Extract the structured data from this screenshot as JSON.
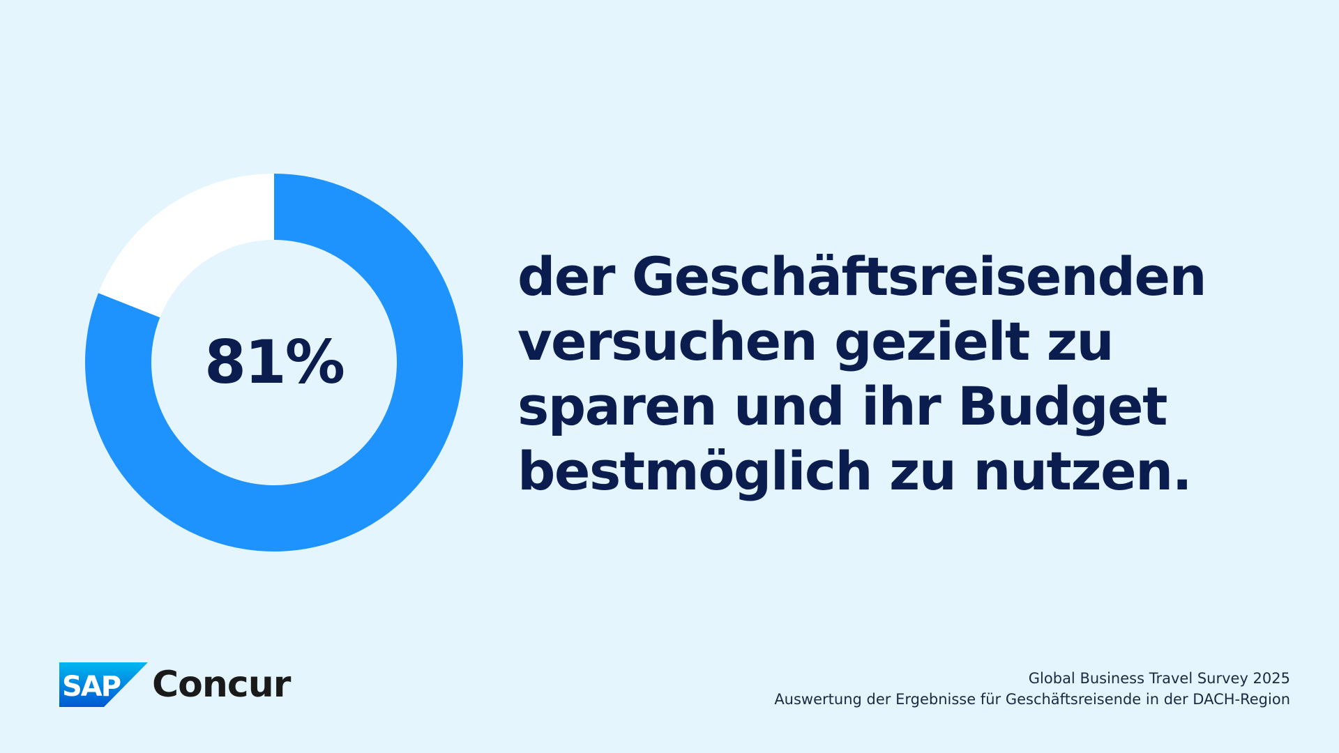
{
  "chart_data": {
    "type": "pie",
    "style": "donut",
    "values": [
      81,
      19
    ],
    "value_label": "81%",
    "colors": [
      "#1e93fd",
      "#ffffff"
    ],
    "start": "top",
    "direction": "clockwise"
  },
  "headline": {
    "lines": [
      "der Geschäftsreisenden",
      "versuchen gezielt zu",
      "sparen und ihr Budget",
      "bestmöglich zu nutzen."
    ]
  },
  "logo": {
    "mark_text": "SAP",
    "name": "Concur"
  },
  "source": {
    "line1": "Global Business Travel Survey 2025",
    "line2": "Auswertung der Ergebnisse für Geschäftsreisende in der DACH-Region"
  },
  "colors": {
    "background": "#e5f5fe",
    "accent": "#1e93fd",
    "remainder": "#ffffff",
    "text": "#0b1c4f"
  }
}
